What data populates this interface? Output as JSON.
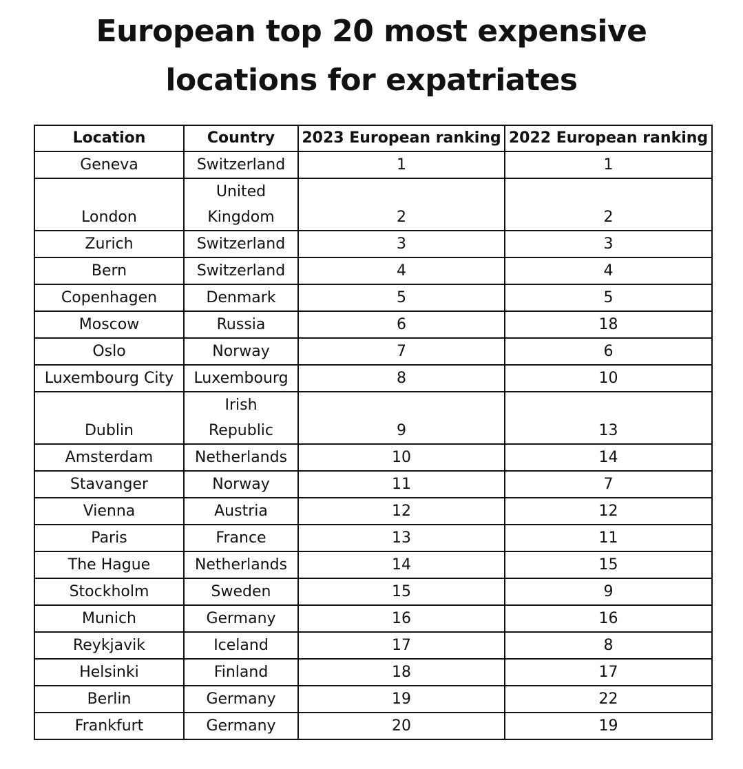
{
  "chart_data": {
    "type": "table",
    "title_lines": [
      "European top 20 most expensive",
      "locations for expatriates"
    ],
    "columns": [
      "Location",
      "Country",
      "2023 European ranking",
      "2022 European ranking"
    ],
    "rows": [
      {
        "location": "Geneva",
        "country_lines": [
          "Switzerland"
        ],
        "rank_2023": "1",
        "rank_2022": "1"
      },
      {
        "location": "London",
        "country_lines": [
          "United",
          "Kingdom"
        ],
        "rank_2023": "2",
        "rank_2022": "2"
      },
      {
        "location": "Zurich",
        "country_lines": [
          "Switzerland"
        ],
        "rank_2023": "3",
        "rank_2022": "3"
      },
      {
        "location": "Bern",
        "country_lines": [
          "Switzerland"
        ],
        "rank_2023": "4",
        "rank_2022": "4"
      },
      {
        "location": "Copenhagen",
        "country_lines": [
          "Denmark"
        ],
        "rank_2023": "5",
        "rank_2022": "5"
      },
      {
        "location": "Moscow",
        "country_lines": [
          "Russia"
        ],
        "rank_2023": "6",
        "rank_2022": "18"
      },
      {
        "location": "Oslo",
        "country_lines": [
          "Norway"
        ],
        "rank_2023": "7",
        "rank_2022": "6"
      },
      {
        "location": "Luxembourg City",
        "country_lines": [
          "Luxembourg"
        ],
        "rank_2023": "8",
        "rank_2022": "10"
      },
      {
        "location": "Dublin",
        "country_lines": [
          "Irish",
          "Republic"
        ],
        "rank_2023": "9",
        "rank_2022": "13"
      },
      {
        "location": "Amsterdam",
        "country_lines": [
          "Netherlands"
        ],
        "rank_2023": "10",
        "rank_2022": "14"
      },
      {
        "location": "Stavanger",
        "country_lines": [
          "Norway"
        ],
        "rank_2023": "11",
        "rank_2022": "7"
      },
      {
        "location": "Vienna",
        "country_lines": [
          "Austria"
        ],
        "rank_2023": "12",
        "rank_2022": "12"
      },
      {
        "location": "Paris",
        "country_lines": [
          "France"
        ],
        "rank_2023": "13",
        "rank_2022": "11"
      },
      {
        "location": "The Hague",
        "country_lines": [
          "Netherlands"
        ],
        "rank_2023": "14",
        "rank_2022": "15"
      },
      {
        "location": "Stockholm",
        "country_lines": [
          "Sweden"
        ],
        "rank_2023": "15",
        "rank_2022": "9"
      },
      {
        "location": "Munich",
        "country_lines": [
          "Germany"
        ],
        "rank_2023": "16",
        "rank_2022": "16"
      },
      {
        "location": "Reykjavik",
        "country_lines": [
          "Iceland"
        ],
        "rank_2023": "17",
        "rank_2022": "8"
      },
      {
        "location": "Helsinki",
        "country_lines": [
          "Finland"
        ],
        "rank_2023": "18",
        "rank_2022": "17"
      },
      {
        "location": "Berlin",
        "country_lines": [
          "Germany"
        ],
        "rank_2023": "19",
        "rank_2022": "22"
      },
      {
        "location": "Frankfurt",
        "country_lines": [
          "Germany"
        ],
        "rank_2023": "20",
        "rank_2022": "19"
      }
    ]
  },
  "colors": {
    "text": "#111111",
    "border": "#111111",
    "background": "#ffffff"
  }
}
